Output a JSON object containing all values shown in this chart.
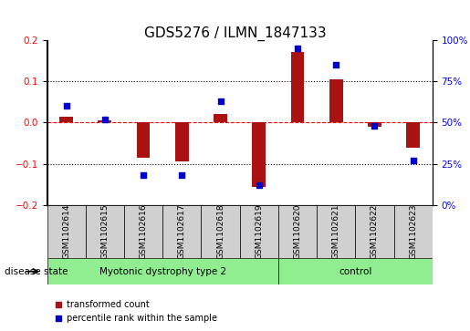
{
  "title": "GDS5276 / ILMN_1847133",
  "samples": [
    "GSM1102614",
    "GSM1102615",
    "GSM1102616",
    "GSM1102617",
    "GSM1102618",
    "GSM1102619",
    "GSM1102620",
    "GSM1102621",
    "GSM1102622",
    "GSM1102623"
  ],
  "transformed_count": [
    0.015,
    0.005,
    -0.085,
    -0.095,
    0.02,
    -0.155,
    0.17,
    0.105,
    -0.01,
    -0.06
  ],
  "percentile_rank": [
    60,
    52,
    18,
    18,
    63,
    12,
    95,
    85,
    48,
    27
  ],
  "bar_color": "#aa1111",
  "dot_color": "#0000cc",
  "left_ylim": [
    -0.2,
    0.2
  ],
  "right_ylim": [
    0,
    100
  ],
  "left_yticks": [
    -0.2,
    -0.1,
    0.0,
    0.1,
    0.2
  ],
  "right_yticks": [
    0,
    25,
    50,
    75,
    100
  ],
  "right_yticklabels": [
    "0%",
    "25%",
    "50%",
    "75%",
    "100%"
  ],
  "hline_positions": [
    -0.1,
    0.0,
    0.1
  ],
  "hline_styles": [
    "dotted",
    "dashed",
    "dotted"
  ],
  "groups": [
    {
      "label": "Myotonic dystrophy type 2",
      "indices": [
        0,
        1,
        2,
        3,
        4,
        5
      ],
      "color": "#90ee90"
    },
    {
      "label": "control",
      "indices": [
        6,
        7,
        8,
        9
      ],
      "color": "#90ee90"
    }
  ],
  "group_bar_color": "#b0b0b0",
  "disease_state_label": "disease state",
  "legend_items": [
    {
      "label": "transformed count",
      "color": "#aa1111",
      "marker": "s"
    },
    {
      "label": "percentile rank within the sample",
      "color": "#0000cc",
      "marker": "s"
    }
  ],
  "title_fontsize": 11,
  "tick_fontsize": 7.5,
  "label_fontsize": 8
}
